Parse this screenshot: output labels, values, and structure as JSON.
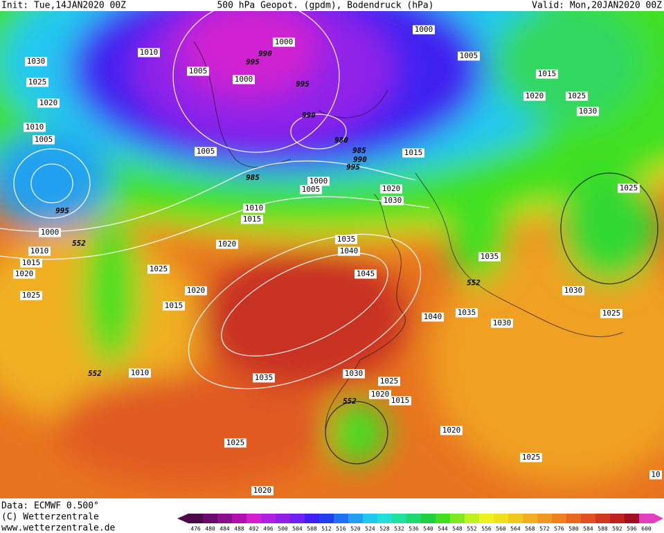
{
  "header": {
    "init": "Init: Tue,14JAN2020 00Z",
    "title": "500 hPa Geopot. (gpdm), Bodendruck (hPa)",
    "valid": "Valid: Mon,20JAN2020 00Z"
  },
  "footer": {
    "data": "Data: ECMWF   0.500°",
    "copyright": "(C) Wetterzentrale",
    "url": "www.wetterzentrale.de"
  },
  "isobar_labels": [
    "1000",
    "1000",
    "990",
    "995",
    "1010",
    "1030",
    "1005",
    "1005",
    "1000",
    "1025",
    "1015",
    "995",
    "1020",
    "1025",
    "1020",
    "1030",
    "990",
    "1010",
    "1005",
    "980",
    "1005",
    "985",
    "1015",
    "990",
    "995",
    "985",
    "1000",
    "1005",
    "1025",
    "1020",
    "1030",
    "995",
    "1010",
    "1015",
    "1000",
    "552",
    "1020",
    "1035",
    "1010",
    "1040",
    "1015",
    "1035",
    "1020",
    "1025",
    "1045",
    "552",
    "1020",
    "1030",
    "1025",
    "1015",
    "1035",
    "1040",
    "1030",
    "1025",
    "552",
    "1010",
    "1030",
    "1035",
    "1025",
    "1020",
    "1015",
    "552",
    "1020",
    "1025",
    "1025",
    "1020",
    "10"
  ],
  "legend": {
    "ticks": [
      476,
      480,
      484,
      488,
      492,
      496,
      500,
      504,
      508,
      512,
      516,
      520,
      524,
      528,
      532,
      536,
      540,
      544,
      548,
      552,
      556,
      560,
      564,
      568,
      572,
      576,
      580,
      584,
      588,
      592,
      596,
      600
    ],
    "colors": [
      "#4a0a4a",
      "#6a0a6a",
      "#8a108a",
      "#b010b0",
      "#d020d0",
      "#b020e0",
      "#9020e8",
      "#7020f0",
      "#4020f0",
      "#2040f0",
      "#2070f0",
      "#20a0f0",
      "#20c8f0",
      "#20e0d8",
      "#20e0a0",
      "#20d870",
      "#20d040",
      "#40e020",
      "#80e820",
      "#c0f020",
      "#f0f020",
      "#f0e020",
      "#f0c820",
      "#f0b020",
      "#f09820",
      "#f08020",
      "#e86820",
      "#e05020",
      "#d03820",
      "#c02020",
      "#a01020",
      "#e040c0"
    ]
  }
}
